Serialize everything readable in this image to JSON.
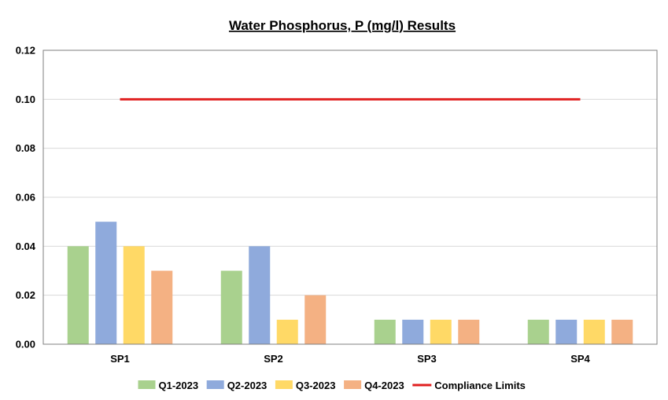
{
  "chart_data": {
    "type": "bar",
    "title": "Water Phosphorus, P (mg/l) Results",
    "xlabel": "",
    "ylabel": "",
    "categories": [
      "SP1",
      "SP2",
      "SP3",
      "SP4"
    ],
    "ylim": [
      0,
      0.12
    ],
    "yticks": [
      "0.00",
      "0.02",
      "0.04",
      "0.06",
      "0.08",
      "0.10",
      "0.12"
    ],
    "grid": true,
    "legend_position": "bottom",
    "series": [
      {
        "name": "Q1-2023",
        "color": "#a9d18e",
        "values": [
          0.04,
          0.03,
          0.01,
          0.01
        ]
      },
      {
        "name": "Q2-2023",
        "color": "#8faadc",
        "values": [
          0.05,
          0.04,
          0.01,
          0.01
        ]
      },
      {
        "name": "Q3-2023",
        "color": "#ffd966",
        "values": [
          0.04,
          0.01,
          0.01,
          0.01
        ]
      },
      {
        "name": "Q4-2023",
        "color": "#f4b183",
        "values": [
          0.03,
          0.02,
          0.01,
          0.01
        ]
      }
    ],
    "reference_line": {
      "name": "Compliance Limits",
      "color": "#e02020",
      "value": 0.1,
      "from_category": "SP1",
      "to_category": "SP4"
    }
  }
}
